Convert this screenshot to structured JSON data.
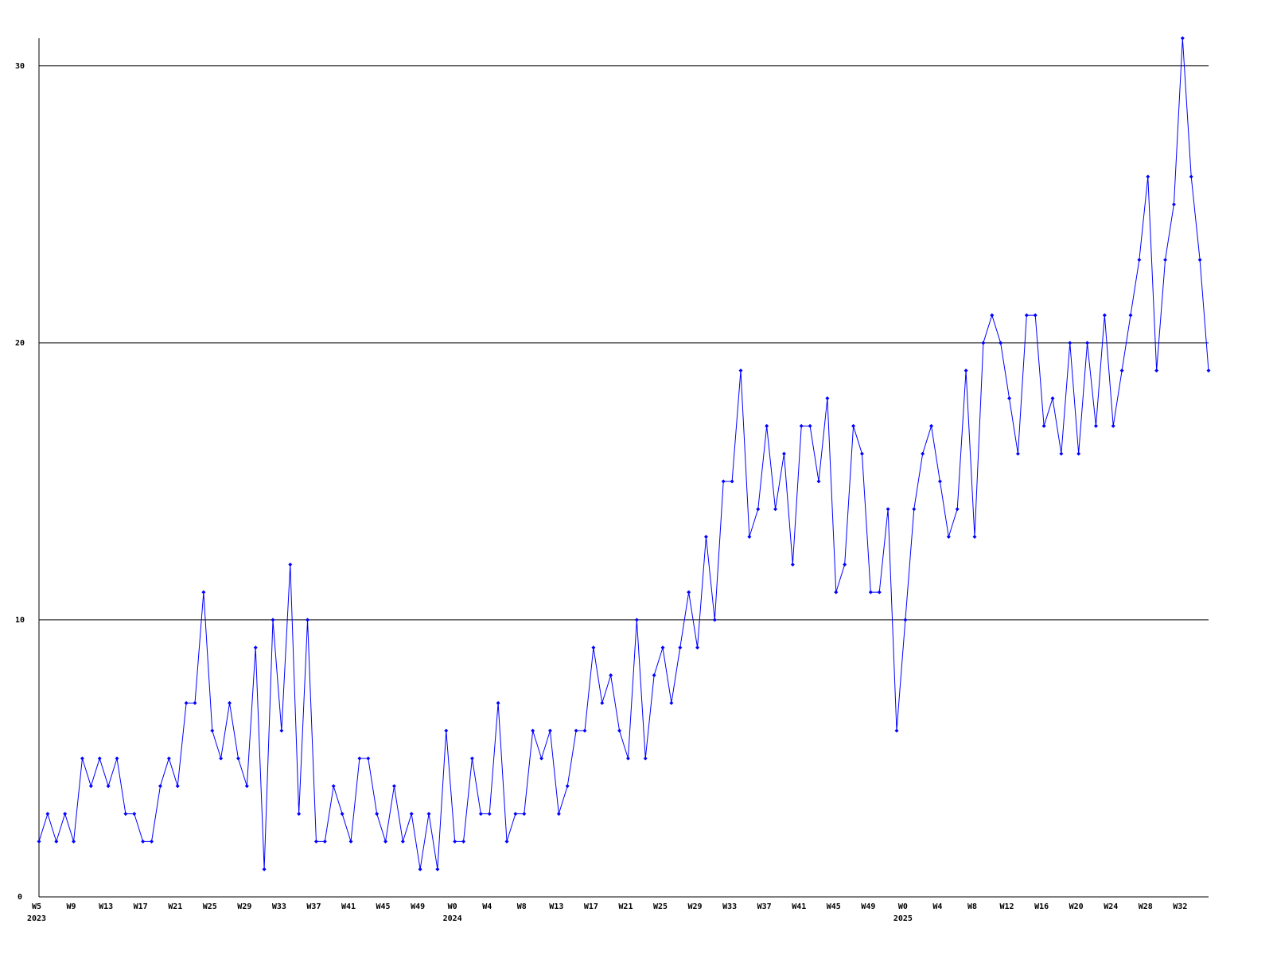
{
  "chart_data": {
    "type": "line",
    "categories": [
      "W5",
      null,
      null,
      null,
      "W9",
      null,
      null,
      null,
      "W13",
      null,
      null,
      null,
      "W17",
      null,
      null,
      null,
      "W21",
      null,
      null,
      null,
      "W25",
      null,
      null,
      null,
      "W29",
      null,
      null,
      null,
      "W33",
      null,
      null,
      null,
      "W37",
      null,
      null,
      null,
      "W41",
      null,
      null,
      null,
      "W45",
      null,
      null,
      null,
      "W49",
      null,
      null,
      null,
      "W0",
      null,
      null,
      null,
      "W4",
      null,
      null,
      null,
      "W8",
      null,
      null,
      null,
      "W13",
      null,
      null,
      null,
      "W17",
      null,
      null,
      null,
      "W21",
      null,
      null,
      null,
      "W25",
      null,
      null,
      null,
      "W29",
      null,
      null,
      null,
      "W33",
      null,
      null,
      null,
      "W37",
      null,
      null,
      null,
      "W41",
      null,
      null,
      null,
      "W45",
      null,
      null,
      null,
      "W49",
      null,
      null,
      null,
      "W0",
      null,
      null,
      null,
      "W4",
      null,
      null,
      null,
      "W8",
      null,
      null,
      null,
      "W12",
      null,
      null,
      null,
      "W16",
      null,
      null,
      null,
      "W20",
      null,
      null,
      null,
      "W24",
      null,
      null,
      null,
      "W28",
      null,
      null,
      null,
      "W32",
      null,
      null,
      null
    ],
    "category_years": [
      "2023",
      null,
      null,
      null,
      null,
      null,
      null,
      null,
      null,
      null,
      null,
      null,
      null,
      null,
      null,
      null,
      null,
      null,
      null,
      null,
      null,
      null,
      null,
      null,
      null,
      null,
      null,
      null,
      null,
      null,
      null,
      null,
      null,
      null,
      null,
      null,
      null,
      null,
      null,
      null,
      null,
      null,
      null,
      null,
      null,
      null,
      null,
      null,
      "2024",
      null,
      null,
      null,
      null,
      null,
      null,
      null,
      null,
      null,
      null,
      null,
      null,
      null,
      null,
      null,
      null,
      null,
      null,
      null,
      null,
      null,
      null,
      null,
      null,
      null,
      null,
      null,
      null,
      null,
      null,
      null,
      null,
      null,
      null,
      null,
      null,
      null,
      null,
      null,
      null,
      null,
      null,
      null,
      null,
      null,
      null,
      null,
      null,
      null,
      null,
      null,
      "2025",
      null,
      null,
      null,
      null,
      null,
      null,
      null,
      null,
      null,
      null,
      null,
      null,
      null,
      null,
      null,
      null,
      null,
      null,
      null,
      null,
      null,
      null,
      null,
      null,
      null,
      null,
      null,
      null,
      null,
      null,
      null,
      null,
      null,
      null,
      null
    ],
    "series": [
      {
        "color": "#0000ff",
        "values": [
          2,
          3,
          2,
          3,
          2,
          5,
          4,
          5,
          4,
          5,
          3,
          3,
          2,
          2,
          4,
          5,
          4,
          7,
          7,
          11,
          6,
          5,
          7,
          5,
          4,
          9,
          1,
          10,
          6,
          12,
          3,
          10,
          2,
          2,
          4,
          3,
          2,
          5,
          5,
          3,
          2,
          4,
          2,
          3,
          1,
          3,
          1,
          6,
          2,
          2,
          5,
          3,
          3,
          7,
          2,
          3,
          3,
          6,
          5,
          6,
          3,
          4,
          6,
          6,
          9,
          7,
          8,
          6,
          5,
          10,
          5,
          8,
          9,
          7,
          9,
          11,
          9,
          13,
          10,
          15,
          15,
          19,
          13,
          14,
          17,
          14,
          16,
          12,
          17,
          17,
          15,
          18,
          11,
          12,
          17,
          16,
          11,
          11,
          14,
          6,
          10,
          14,
          16,
          17,
          15,
          13,
          14,
          19,
          13,
          20,
          21,
          20,
          18,
          16,
          21,
          21,
          17,
          18,
          16,
          20,
          16,
          20,
          17,
          21,
          17,
          19,
          21,
          23,
          26,
          19,
          23,
          25,
          31,
          26,
          23,
          19
        ]
      }
    ],
    "ylim": [
      0,
      31
    ],
    "yticks": [
      0,
      10,
      20,
      30
    ],
    "grid": true
  }
}
